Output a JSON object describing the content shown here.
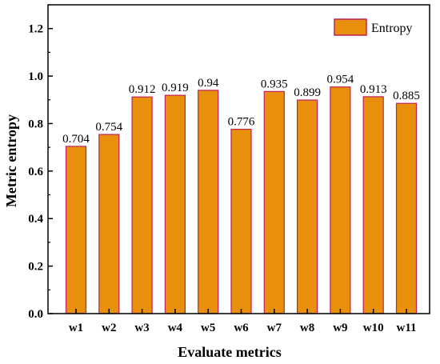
{
  "chart_data": {
    "type": "bar",
    "categories": [
      "w1",
      "w2",
      "w3",
      "w4",
      "w5",
      "w6",
      "w7",
      "w8",
      "w9",
      "w10",
      "w11"
    ],
    "series": [
      {
        "name": "Entropy",
        "values": [
          0.704,
          0.754,
          0.912,
          0.919,
          0.94,
          0.776,
          0.935,
          0.899,
          0.954,
          0.913,
          0.885
        ],
        "data_labels": [
          "0.704",
          "0.754",
          "0.912",
          "0.919",
          "0.94",
          "0.776",
          "0.935",
          "0.899",
          "0.954",
          "0.913",
          "0.885"
        ]
      }
    ],
    "title": "",
    "xlabel": "Evaluate metrics",
    "ylabel": "Metric entropy",
    "ylim": [
      0,
      1.3
    ],
    "yticks": [
      "0.0",
      "0.2",
      "0.4",
      "0.6",
      "0.8",
      "1.0",
      "1.2"
    ],
    "grid": false,
    "legend": "top-right",
    "colors": {
      "bar_fill": "#E8900C",
      "bar_edge": "#C0205A",
      "axis": "#000000"
    }
  }
}
